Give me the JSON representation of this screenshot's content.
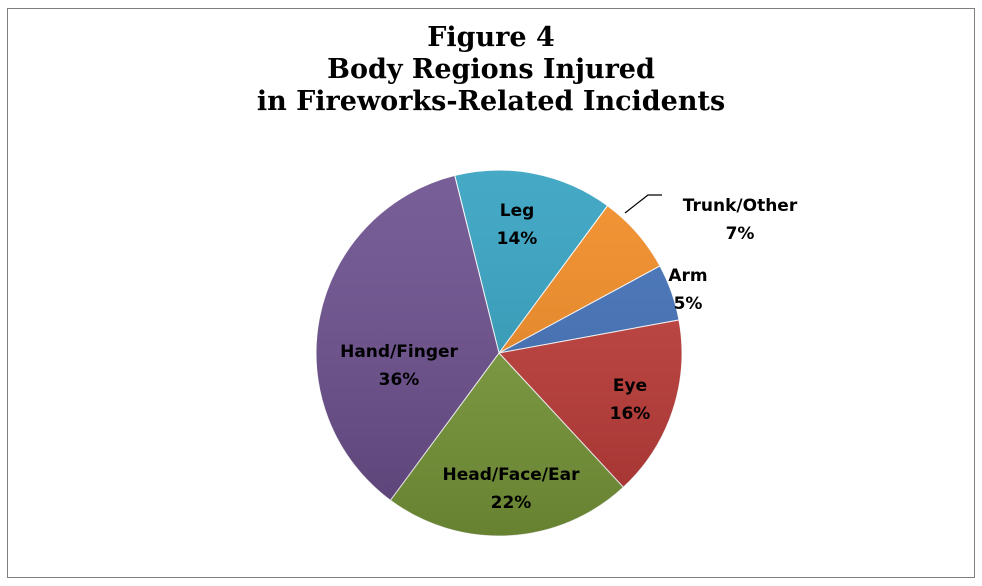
{
  "chart_data": {
    "type": "pie",
    "title_lines": [
      "Figure 4",
      "Body Regions Injured",
      "in Fireworks-Related Incidents"
    ],
    "slices": [
      {
        "label": "Leg",
        "pct_label": "14%",
        "value": 14,
        "color": "#31a0c0"
      },
      {
        "label": "Trunk/Other",
        "pct_label": "7%",
        "value": 7,
        "color": "#f28a21"
      },
      {
        "label": "Arm",
        "pct_label": "5%",
        "value": 5,
        "color": "#3f6fb8"
      },
      {
        "label": "Eye",
        "pct_label": "16%",
        "value": 16,
        "color": "#bf3a37"
      },
      {
        "label": "Head/Face/Ear",
        "pct_label": "22%",
        "value": 22,
        "color": "#7a9a39"
      },
      {
        "label": "Hand/Finger",
        "pct_label": "36%",
        "value": 36,
        "color": "#6a4d8c"
      }
    ],
    "start_angle_deg": 346,
    "direction": "clockwise",
    "legend": "none"
  }
}
